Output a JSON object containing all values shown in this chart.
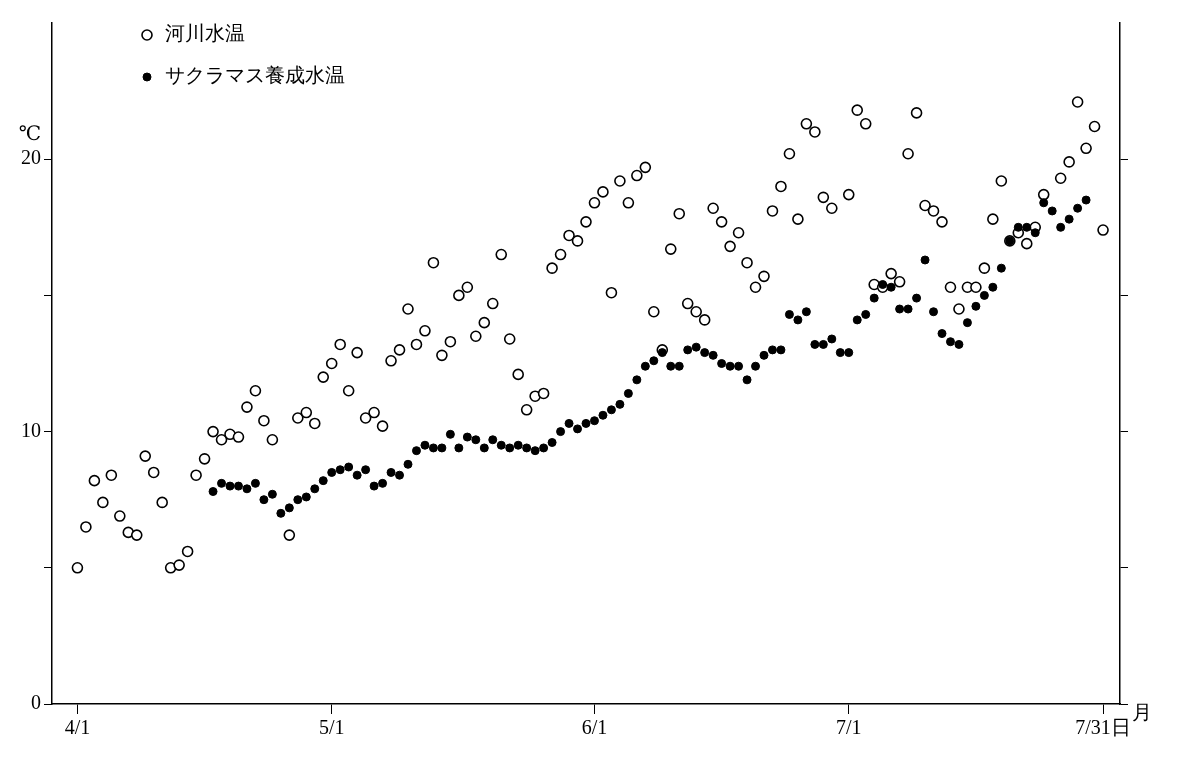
{
  "chart_data": {
    "type": "scatter",
    "ylabel": "℃",
    "xlabel": "月",
    "xlim": [
      "--03-29",
      "--08-02"
    ],
    "xticks": [
      {
        "value": "--04-01",
        "label": "4/1"
      },
      {
        "value": "--05-01",
        "label": "5/1"
      },
      {
        "value": "--06-01",
        "label": "6/1"
      },
      {
        "value": "--07-01",
        "label": "7/1"
      },
      {
        "value": "--07-31",
        "label": "7/31日"
      }
    ],
    "ylim": [
      0,
      25
    ],
    "yticks": [
      0,
      {
        "value": 5,
        "label": null
      },
      10,
      {
        "value": 15,
        "label": null
      },
      20
    ],
    "grid": false,
    "legend": "top left",
    "marker": "circle",
    "series": [
      {
        "name": "河川水温",
        "color": "#000000",
        "x": [
          "--04-01",
          "--04-02",
          "--04-03",
          "--04-04",
          "--04-05",
          "--04-06",
          "--04-07",
          "--04-08",
          "--04-09",
          "--04-10",
          "--04-11",
          "--04-12",
          "--04-13",
          "--04-14",
          "--04-15",
          "--04-16",
          "--04-17",
          "--04-18",
          "--04-19",
          "--04-20",
          "--04-21",
          "--04-22",
          "--04-23",
          "--04-24",
          "--04-26",
          "--04-27",
          "--04-28",
          "--04-29",
          "--04-30",
          "--05-01",
          "--05-02",
          "--05-03",
          "--05-04",
          "--05-05",
          "--05-06",
          "--05-07",
          "--05-08",
          "--05-09",
          "--05-10",
          "--05-11",
          "--05-12",
          "--05-13",
          "--05-14",
          "--05-15",
          "--05-16",
          "--05-17",
          "--05-18",
          "--05-19",
          "--05-20",
          "--05-21",
          "--05-22",
          "--05-23",
          "--05-24",
          "--05-25",
          "--05-26",
          "--05-27",
          "--05-28",
          "--05-29",
          "--05-30",
          "--05-31",
          "--06-01",
          "--06-02",
          "--06-03",
          "--06-04",
          "--06-05",
          "--06-06",
          "--06-07",
          "--06-08",
          "--06-09",
          "--06-10",
          "--06-11",
          "--06-12",
          "--06-13",
          "--06-14",
          "--06-15",
          "--06-16",
          "--06-17",
          "--06-18",
          "--06-19",
          "--06-20",
          "--06-21",
          "--06-22",
          "--06-23",
          "--06-24",
          "--06-25",
          "--06-26",
          "--06-27",
          "--06-28",
          "--06-29",
          "--07-01",
          "--07-02",
          "--07-03",
          "--07-04",
          "--07-05",
          "--07-06",
          "--07-07",
          "--07-08",
          "--07-09",
          "--07-10",
          "--07-11",
          "--07-12",
          "--07-13",
          "--07-14",
          "--07-15",
          "--07-16",
          "--07-17",
          "--07-18",
          "--07-19",
          "--07-20",
          "--07-21",
          "--07-22",
          "--07-23",
          "--07-24",
          "--07-26",
          "--07-27",
          "--07-28",
          "--07-29",
          "--07-30",
          "--07-31"
        ],
        "values": [
          5.0,
          6.5,
          8.2,
          7.4,
          8.4,
          6.9,
          6.3,
          6.2,
          9.1,
          8.5,
          7.4,
          5.0,
          5.1,
          5.6,
          8.4,
          9.0,
          10.0,
          9.7,
          9.9,
          9.8,
          10.9,
          11.5,
          10.4,
          9.7,
          6.2,
          10.5,
          10.7,
          10.3,
          12.0,
          12.5,
          13.2,
          11.5,
          12.9,
          10.5,
          10.7,
          10.2,
          12.6,
          13.0,
          14.5,
          13.2,
          13.7,
          16.2,
          12.8,
          13.3,
          15.0,
          15.3,
          13.5,
          14.0,
          14.7,
          16.5,
          13.4,
          12.1,
          10.8,
          11.3,
          11.4,
          16.0,
          16.5,
          17.2,
          17.0,
          17.7,
          18.4,
          18.8,
          15.1,
          19.2,
          18.4,
          19.4,
          19.7,
          14.4,
          13.0,
          16.7,
          18.0,
          14.7,
          14.4,
          14.1,
          18.2,
          17.7,
          16.8,
          17.3,
          16.2,
          15.3,
          15.7,
          18.1,
          19.0,
          20.2,
          17.8,
          21.3,
          21.0,
          18.6,
          18.2,
          18.7,
          21.8,
          21.3,
          15.4,
          15.3,
          15.8,
          15.5,
          20.2,
          21.7,
          18.3,
          18.1,
          17.7,
          15.3,
          14.5,
          15.3,
          15.3,
          16.0,
          17.8,
          19.2,
          17.0,
          17.3,
          16.9,
          17.5,
          18.7,
          19.3,
          19.9,
          22.1,
          20.4,
          21.2,
          17.4
        ]
      },
      {
        "name": "サクラマス養成水温",
        "color": "#000000",
        "x": [
          "--04-17",
          "--04-18",
          "--04-19",
          "--04-20",
          "--04-21",
          "--04-22",
          "--04-23",
          "--04-24",
          "--04-25",
          "--04-26",
          "--04-27",
          "--04-28",
          "--04-29",
          "--04-30",
          "--05-01",
          "--05-02",
          "--05-03",
          "--05-04",
          "--05-05",
          "--05-06",
          "--05-07",
          "--05-08",
          "--05-09",
          "--05-10",
          "--05-11",
          "--05-12",
          "--05-13",
          "--05-14",
          "--05-15",
          "--05-16",
          "--05-17",
          "--05-18",
          "--05-19",
          "--05-20",
          "--05-21",
          "--05-22",
          "--05-23",
          "--05-24",
          "--05-25",
          "--05-26",
          "--05-27",
          "--05-28",
          "--05-29",
          "--05-30",
          "--05-31",
          "--06-01",
          "--06-02",
          "--06-03",
          "--06-04",
          "--06-05",
          "--06-06",
          "--06-07",
          "--06-08",
          "--06-09",
          "--06-10",
          "--06-11",
          "--06-12",
          "--06-13",
          "--06-14",
          "--06-15",
          "--06-16",
          "--06-17",
          "--06-18",
          "--06-19",
          "--06-20",
          "--06-21",
          "--06-22",
          "--06-23",
          "--06-24",
          "--06-25",
          "--06-26",
          "--06-27",
          "--06-28",
          "--06-29",
          "--06-30",
          "--07-01",
          "--07-02",
          "--07-03",
          "--07-04",
          "--07-05",
          "--07-06",
          "--07-07",
          "--07-08",
          "--07-09",
          "--07-10",
          "--07-11",
          "--07-12",
          "--07-13",
          "--07-14",
          "--07-15",
          "--07-16",
          "--07-17",
          "--07-18",
          "--07-19",
          "--07-20",
          "--07-21",
          "--07-22",
          "--07-23",
          "--07-24",
          "--07-25",
          "--07-26",
          "--07-27",
          "--07-28",
          "--07-29"
        ],
        "values": [
          7.8,
          8.1,
          8.0,
          8.0,
          7.9,
          8.1,
          7.5,
          7.7,
          7.0,
          7.2,
          7.5,
          7.6,
          7.9,
          8.2,
          8.5,
          8.6,
          8.7,
          8.4,
          8.6,
          8.0,
          8.1,
          8.5,
          8.4,
          8.8,
          9.3,
          9.5,
          9.4,
          9.4,
          9.9,
          9.4,
          9.8,
          9.7,
          9.4,
          9.7,
          9.5,
          9.4,
          9.5,
          9.4,
          9.3,
          9.4,
          9.6,
          10.0,
          10.3,
          10.1,
          10.3,
          10.4,
          10.6,
          10.8,
          11.0,
          11.4,
          11.9,
          12.4,
          12.6,
          12.9,
          12.4,
          12.4,
          13.0,
          13.1,
          12.9,
          12.8,
          12.5,
          12.4,
          12.4,
          11.9,
          12.4,
          12.8,
          13.0,
          13.0,
          14.3,
          14.1,
          14.4,
          13.2,
          13.2,
          13.4,
          12.9,
          12.9,
          14.1,
          14.3,
          14.9,
          15.4,
          15.3,
          14.5,
          14.5,
          14.9,
          16.3,
          14.4,
          13.6,
          13.3,
          13.2,
          14.0,
          14.6,
          15.0,
          15.3,
          16.0,
          17.0,
          17.5,
          17.5,
          17.3,
          18.4,
          18.1,
          17.5,
          17.8,
          18.2,
          18.5
        ]
      }
    ]
  }
}
